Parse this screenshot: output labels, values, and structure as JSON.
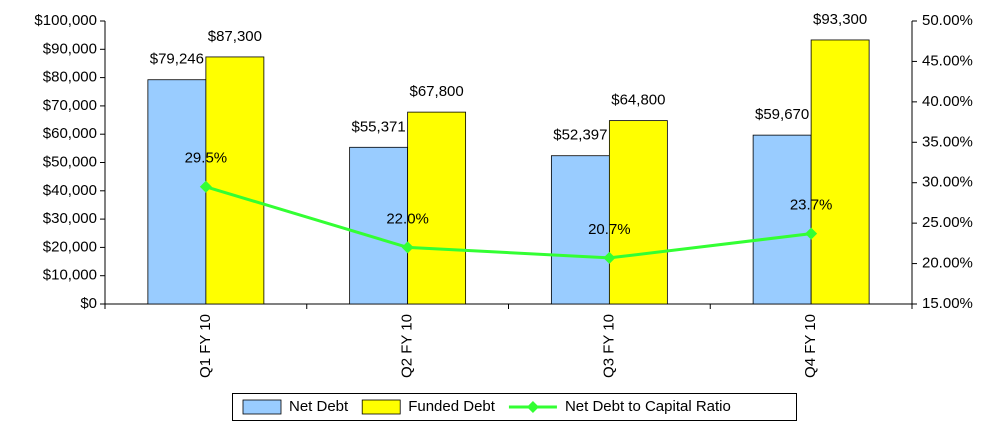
{
  "chart_data": {
    "type": "bar",
    "categories": [
      "Q1 FY 10",
      "Q2 FY 10",
      "Q3 FY 10",
      "Q4 FY 10"
    ],
    "series": [
      {
        "name": "Net Debt",
        "color": "#99ccff",
        "values": [
          79246,
          55371,
          52397,
          59670
        ],
        "value_labels": [
          "$79,246",
          "$55,371",
          "$52,397",
          "$59,670"
        ]
      },
      {
        "name": "Funded Debt",
        "color": "#ffff00",
        "values": [
          87300,
          67800,
          64800,
          93300
        ],
        "value_labels": [
          "$87,300",
          "$67,800",
          "$64,800",
          "$93,300"
        ]
      },
      {
        "name": "Net Debt to Capital Ratio",
        "type": "line",
        "axis": "y2",
        "color": "#33ff33",
        "values": [
          29.5,
          22.0,
          20.7,
          23.7
        ],
        "value_labels": [
          "29.5%",
          "22.0%",
          "20.7%",
          "23.7%"
        ]
      }
    ],
    "ylim": [
      0,
      100000
    ],
    "yticks": [
      {
        "value": 0,
        "label": "$0"
      },
      {
        "value": 10000,
        "label": "$10,000"
      },
      {
        "value": 20000,
        "label": "$20,000"
      },
      {
        "value": 30000,
        "label": "$30,000"
      },
      {
        "value": 40000,
        "label": "$40,000"
      },
      {
        "value": 50000,
        "label": "$50,000"
      },
      {
        "value": 60000,
        "label": "$60,000"
      },
      {
        "value": 70000,
        "label": "$70,000"
      },
      {
        "value": 80000,
        "label": "$80,000"
      },
      {
        "value": 90000,
        "label": "$90,000"
      },
      {
        "value": 100000,
        "label": "$100,000"
      }
    ],
    "y2lim": [
      15,
      50
    ],
    "y2ticks": [
      {
        "value": 15,
        "label": "15.00%"
      },
      {
        "value": 20,
        "label": "20.00%"
      },
      {
        "value": 25,
        "label": "25.00%"
      },
      {
        "value": 30,
        "label": "30.00%"
      },
      {
        "value": 35,
        "label": "35.00%"
      },
      {
        "value": 40,
        "label": "40.00%"
      },
      {
        "value": 45,
        "label": "45.00%"
      },
      {
        "value": 50,
        "label": "50.00%"
      }
    ],
    "grid": false,
    "legend": "bottom"
  }
}
